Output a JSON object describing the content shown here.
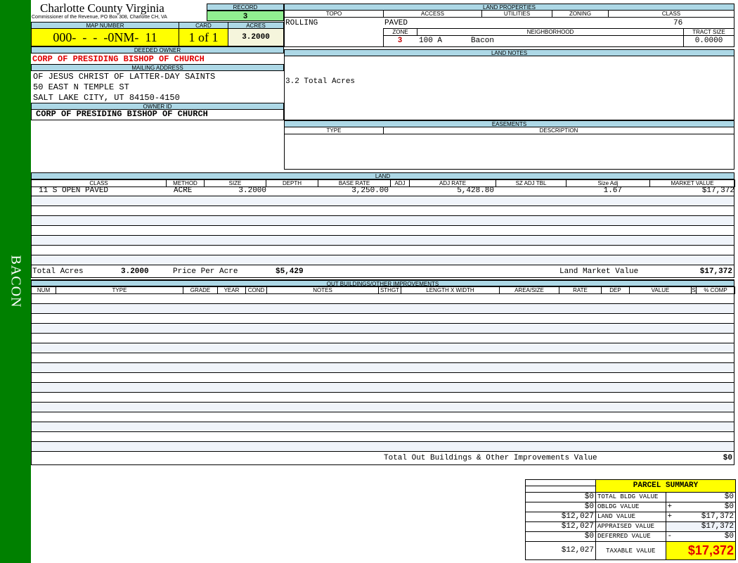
{
  "sidebar": {
    "label": "BACON",
    "color": "#008000"
  },
  "header": {
    "title": "Charlotte County Virginia",
    "subtitle": "Commissioner of the Revenue, PO Box 308, Charlotte CH, VA",
    "record_label": "RECORD",
    "record": "3"
  },
  "parcel": {
    "map_number_label": "MAP NUMBER",
    "map_number": "000-  -  -  -0NM-  11",
    "card_label": "CARD",
    "card": "1 of 1",
    "acres_label": "ACRES",
    "acres": "3.2000"
  },
  "owner": {
    "deeded_label": "DEEDED OWNER",
    "deeded": "CORP OF PRESIDING BISHOP OF CHURCH",
    "mailing_label": "MAILING ADDRESS",
    "mailing": [
      "OF JESUS CHRIST OF LATTER-DAY SAINTS",
      "50 EAST N TEMPLE ST",
      "SALT LAKE CITY, UT 84150-4150"
    ],
    "id_label": "OWNER ID",
    "id": "CORP OF PRESIDING BISHOP OF CHURCH"
  },
  "land_properties": {
    "title": "LAND PROPERTIES",
    "headers": [
      "TOPO",
      "ACCESS",
      "UTILITIES",
      "ZONING",
      "CLASS"
    ],
    "topo": "ROLLING",
    "access": "PAVED",
    "utilities": "",
    "zoning": "",
    "class": "76",
    "zone_label": "ZONE",
    "neighborhood_label": "NEIGHBORHOOD",
    "tract_label": "TRACT SIZE",
    "zone": "3",
    "neighborhood_code": "100 A",
    "neighborhood": "Bacon",
    "tract_size": "0.0000"
  },
  "land_notes": {
    "title": "LAND NOTES",
    "text": "3.2 Total Acres"
  },
  "easements": {
    "title": "EASEMENTS",
    "headers": [
      "TYPE",
      "DESCRIPTION"
    ]
  },
  "land": {
    "title": "LAND",
    "headers": [
      "CLASS",
      "METHOD",
      "SIZE",
      "DEPTH",
      "BASE RATE",
      "ADJ",
      "ADJ RATE",
      "SZ ADJ TBL",
      "Size Adj",
      "MARKET VALUE"
    ],
    "rows": [
      [
        "11 S OPEN PAVED",
        "ACRE",
        "3.2000",
        "",
        "3,250.00",
        "",
        "5,428.80",
        "",
        "1.67",
        "$17,372"
      ]
    ],
    "total_acres_label": "Total Acres",
    "total_acres": "3.2000",
    "price_per_acre_label": "Price Per Acre",
    "price_per_acre": "$5,429",
    "market_value_label": "Land Market Value",
    "market_value": "$17,372"
  },
  "outbuildings": {
    "title": "OUT BUILDINGS/OTHER IMPROVEMENTS",
    "headers": [
      "NUM",
      "TYPE",
      "GRADE",
      "YEAR",
      "COND",
      "NOTES",
      "STHGT",
      "LENGTH X WIDTH",
      "AREA/SIZE",
      "RATE",
      "DEP",
      "VALUE",
      "S",
      "% COMP"
    ],
    "total_label": "Total Out Buildings & Other Improvements Value",
    "total": "$0"
  },
  "summary": {
    "title": "PARCEL SUMMARY",
    "rows": [
      {
        "left": "$0",
        "label": "TOTAL BLDG VALUE",
        "op": "",
        "value": "$0"
      },
      {
        "left": "$0",
        "label": "OBLDG VALUE",
        "op": "+",
        "value": "$0"
      },
      {
        "left": "$12,027",
        "label": "LAND VALUE",
        "op": "+",
        "value": "$17,372"
      },
      {
        "left": "$12,027",
        "label": "APPRAISED VALUE",
        "op": "",
        "value": "$17,372"
      },
      {
        "left": "$0",
        "label": "DEFERRED VALUE",
        "op": "-",
        "value": "$0"
      }
    ],
    "taxable_left": "$12,027",
    "taxable_label": "TAXABLE VALUE",
    "taxable": "$17,372"
  }
}
